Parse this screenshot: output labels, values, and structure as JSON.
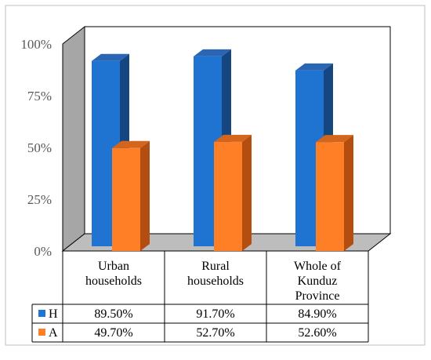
{
  "chart_data": {
    "type": "bar",
    "style": "3d-clustered-column-with-data-table",
    "categories": [
      [
        "Urban",
        "households"
      ],
      [
        "Rural",
        "households"
      ],
      [
        "Whole of",
        "Kunduz",
        "Province"
      ]
    ],
    "series": [
      {
        "name": "H",
        "values": [
          89.5,
          91.7,
          84.9
        ],
        "labels": [
          "89.50%",
          "91.70%",
          "84.90%"
        ]
      },
      {
        "name": "A",
        "values": [
          49.7,
          52.7,
          52.6
        ],
        "labels": [
          "49.70%",
          "52.70%",
          "52.60%"
        ]
      }
    ],
    "yticks": [
      "0%",
      "25%",
      "50%",
      "75%",
      "100%"
    ],
    "ylim": [
      0,
      100
    ],
    "colors": {
      "H_front": "#1F74D2",
      "H_side": "#15467F",
      "H_top": "#2A66B4",
      "A_front": "#FF7F27",
      "A_side": "#B44E10",
      "A_top": "#D4651C",
      "back_wall": "#FFFFFF",
      "side_wall": "#A6A6A6",
      "floor": "#BDBDBD"
    }
  }
}
